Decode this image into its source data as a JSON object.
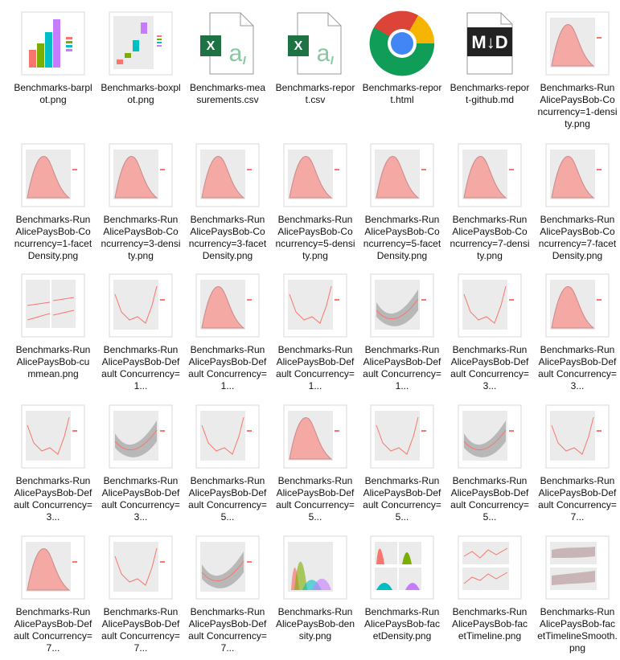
{
  "files": [
    {
      "name": "Benchmarks-barplot.png",
      "icon": "barplot-thumbnail"
    },
    {
      "name": "Benchmarks-boxplot.png",
      "icon": "boxplot-thumbnail"
    },
    {
      "name": "Benchmarks-measurements.csv",
      "icon": "excel-csv-icon"
    },
    {
      "name": "Benchmarks-report.csv",
      "icon": "excel-csv-icon"
    },
    {
      "name": "Benchmarks-report.html",
      "icon": "chrome-icon"
    },
    {
      "name": "Benchmarks-report-github.md",
      "icon": "markdown-icon"
    },
    {
      "name": "Benchmarks-RunAlicePaysBob-Concurrency=1-density.png",
      "icon": "density-thumbnail"
    },
    {
      "name": "Benchmarks-RunAlicePaysBob-Concurrency=1-facetDensity.png",
      "icon": "density-thumbnail"
    },
    {
      "name": "Benchmarks-RunAlicePaysBob-Concurrency=3-density.png",
      "icon": "density-thumbnail"
    },
    {
      "name": "Benchmarks-RunAlicePaysBob-Concurrency=3-facetDensity.png",
      "icon": "density-thumbnail"
    },
    {
      "name": "Benchmarks-RunAlicePaysBob-Concurrency=5-density.png",
      "icon": "density-thumbnail"
    },
    {
      "name": "Benchmarks-RunAlicePaysBob-Concurrency=5-facetDensity.png",
      "icon": "density-thumbnail"
    },
    {
      "name": "Benchmarks-RunAlicePaysBob-Concurrency=7-density.png",
      "icon": "density-thumbnail"
    },
    {
      "name": "Benchmarks-RunAlicePaysBob-Concurrency=7-facetDensity.png",
      "icon": "density-thumbnail"
    },
    {
      "name": "Benchmarks-RunAlicePaysBob-cummean.png",
      "icon": "cummean-thumbnail"
    },
    {
      "name": "Benchmarks-RunAlicePaysBob-Default Concurrency=1...",
      "icon": "line-thumbnail"
    },
    {
      "name": "Benchmarks-RunAlicePaysBob-Default Concurrency=1...",
      "icon": "density-thumbnail"
    },
    {
      "name": "Benchmarks-RunAlicePaysBob-Default Concurrency=1...",
      "icon": "line-thumbnail"
    },
    {
      "name": "Benchmarks-RunAlicePaysBob-Default Concurrency=1...",
      "icon": "smooth-thumbnail"
    },
    {
      "name": "Benchmarks-RunAlicePaysBob-Default Concurrency=3...",
      "icon": "line-thumbnail"
    },
    {
      "name": "Benchmarks-RunAlicePaysBob-Default Concurrency=3...",
      "icon": "density-thumbnail"
    },
    {
      "name": "Benchmarks-RunAlicePaysBob-Default Concurrency=3...",
      "icon": "line-thumbnail"
    },
    {
      "name": "Benchmarks-RunAlicePaysBob-Default Concurrency=3...",
      "icon": "smooth-thumbnail"
    },
    {
      "name": "Benchmarks-RunAlicePaysBob-Default Concurrency=5...",
      "icon": "line-thumbnail"
    },
    {
      "name": "Benchmarks-RunAlicePaysBob-Default Concurrency=5...",
      "icon": "density-thumbnail"
    },
    {
      "name": "Benchmarks-RunAlicePaysBob-Default Concurrency=5...",
      "icon": "line-thumbnail"
    },
    {
      "name": "Benchmarks-RunAlicePaysBob-Default Concurrency=5...",
      "icon": "smooth-thumbnail"
    },
    {
      "name": "Benchmarks-RunAlicePaysBob-Default Concurrency=7...",
      "icon": "line-thumbnail"
    },
    {
      "name": "Benchmarks-RunAlicePaysBob-Default Concurrency=7...",
      "icon": "density-thumbnail"
    },
    {
      "name": "Benchmarks-RunAlicePaysBob-Default Concurrency=7...",
      "icon": "line-thumbnail"
    },
    {
      "name": "Benchmarks-RunAlicePaysBob-Default Concurrency=7...",
      "icon": "smooth-thumbnail"
    },
    {
      "name": "Benchmarks-RunAlicePaysBob-density.png",
      "icon": "multi-density-thumbnail"
    },
    {
      "name": "Benchmarks-RunAlicePaysBob-facetDensity.png",
      "icon": "facet-density-thumbnail"
    },
    {
      "name": "Benchmarks-RunAlicePaysBob-facetTimeline.png",
      "icon": "facet-timeline-thumbnail"
    },
    {
      "name": "Benchmarks-RunAlicePaysBob-facetTimelineSmooth.png",
      "icon": "facet-smooth-thumbnail"
    }
  ],
  "colors": {
    "excel_green": "#1f7244",
    "density_fill": "#f4a9a4",
    "plot_bg": "#ebebeb"
  }
}
